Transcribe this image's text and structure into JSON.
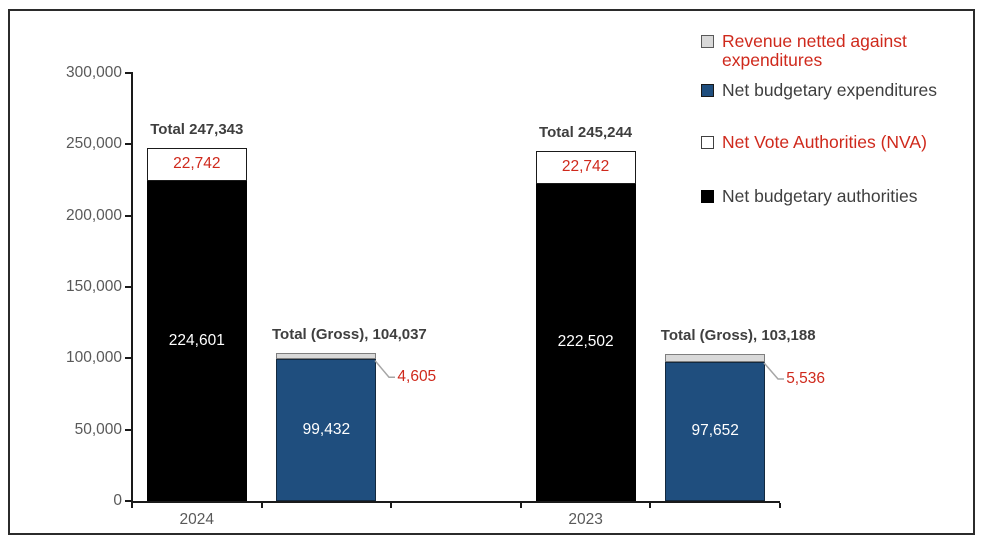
{
  "chart_data": {
    "type": "bar",
    "subtype": "stacked-columns",
    "title": "",
    "xlabel": "",
    "ylabel": "",
    "ylim": [
      0,
      300000
    ],
    "grid": false,
    "legend_position": "top-right",
    "yticks": {
      "values": [
        0,
        50000,
        100000,
        150000,
        200000,
        250000,
        300000
      ],
      "labels": [
        "0",
        "50,000",
        "100,000",
        "150,000",
        "200,000",
        "250,000",
        "300,000"
      ]
    },
    "groups": [
      {
        "category": "2024",
        "stacks": [
          {
            "name": "net-budgetary-authorities-stack",
            "total": 247343,
            "total_label": "Total 247,343",
            "segments": [
              {
                "series": "Net budgetary authorities",
                "value": 224601,
                "label": "224,601",
                "color": "#000000",
                "label_color": "#ffffff",
                "label_placement": "inside"
              },
              {
                "series": "Net Vote Authorities (NVA)",
                "value": 22742,
                "label": "22,742",
                "color": "#ffffff",
                "border_color": "#1a1a1a",
                "label_color": "#cf291c",
                "label_placement": "inside"
              }
            ]
          },
          {
            "name": "gross-expenditures-stack",
            "total": 104037,
            "total_label": "Total (Gross), 104,037",
            "segments": [
              {
                "series": "Net budgetary expenditures",
                "value": 99432,
                "label": "99,432",
                "color": "#1f4e7e",
                "border_color": "#13293f",
                "label_color": "#ffffff",
                "label_placement": "inside"
              },
              {
                "series": "Revenue netted against expenditures",
                "value": 4605,
                "label": "4,605",
                "color": "#d9d9d9",
                "border_color": "#7f7f7f",
                "label_color": "#cf291c",
                "label_placement": "callout"
              }
            ]
          }
        ]
      },
      {
        "category": "2023",
        "stacks": [
          {
            "name": "net-budgetary-authorities-stack",
            "total": 245244,
            "total_label": "Total 245,244",
            "segments": [
              {
                "series": "Net budgetary authorities",
                "value": 222502,
                "label": "222,502",
                "color": "#000000",
                "label_color": "#ffffff",
                "label_placement": "inside"
              },
              {
                "series": "Net Vote Authorities (NVA)",
                "value": 22742,
                "label": "22,742",
                "color": "#ffffff",
                "border_color": "#1a1a1a",
                "label_color": "#cf291c",
                "label_placement": "inside"
              }
            ]
          },
          {
            "name": "gross-expenditures-stack",
            "total": 103188,
            "total_label": "Total (Gross), 103,188",
            "segments": [
              {
                "series": "Net budgetary expenditures",
                "value": 97652,
                "label": "97,652",
                "color": "#1f4e7e",
                "border_color": "#13293f",
                "label_color": "#ffffff",
                "label_placement": "inside"
              },
              {
                "series": "Revenue netted against expenditures",
                "value": 5536,
                "label": "5,536",
                "color": "#d9d9d9",
                "border_color": "#7f7f7f",
                "label_color": "#cf291c",
                "label_placement": "callout"
              }
            ]
          }
        ]
      }
    ]
  },
  "legend": {
    "items": [
      {
        "label": "Revenue netted against expenditures",
        "swatch_color": "#d9d9d9",
        "swatch_border": "#595959",
        "text_color": "#cf291c",
        "icon": "square-swatch"
      },
      {
        "label": "Net budgetary expenditures",
        "swatch_color": "#1f4e7e",
        "swatch_border": "#1a1a1a",
        "text_color": "#3f3f3f",
        "icon": "square-swatch"
      },
      {
        "label": "Net Vote Authorities (NVA)",
        "swatch_color": "#ffffff",
        "swatch_border": "#404040",
        "text_color": "#cf291c",
        "icon": "square-swatch"
      },
      {
        "label": "Net budgetary authorities",
        "swatch_color": "#000000",
        "swatch_border": "#000000",
        "text_color": "#3f3f3f",
        "icon": "square-swatch"
      }
    ]
  },
  "colors": {
    "background": "#ffffff",
    "frame_border": "#2b2b2b",
    "axis": "#1a1a1a",
    "tick_label": "#595959",
    "category_label": "#595959",
    "total_label": "#3f3f3f",
    "callout_line": "#a6a6a6"
  }
}
